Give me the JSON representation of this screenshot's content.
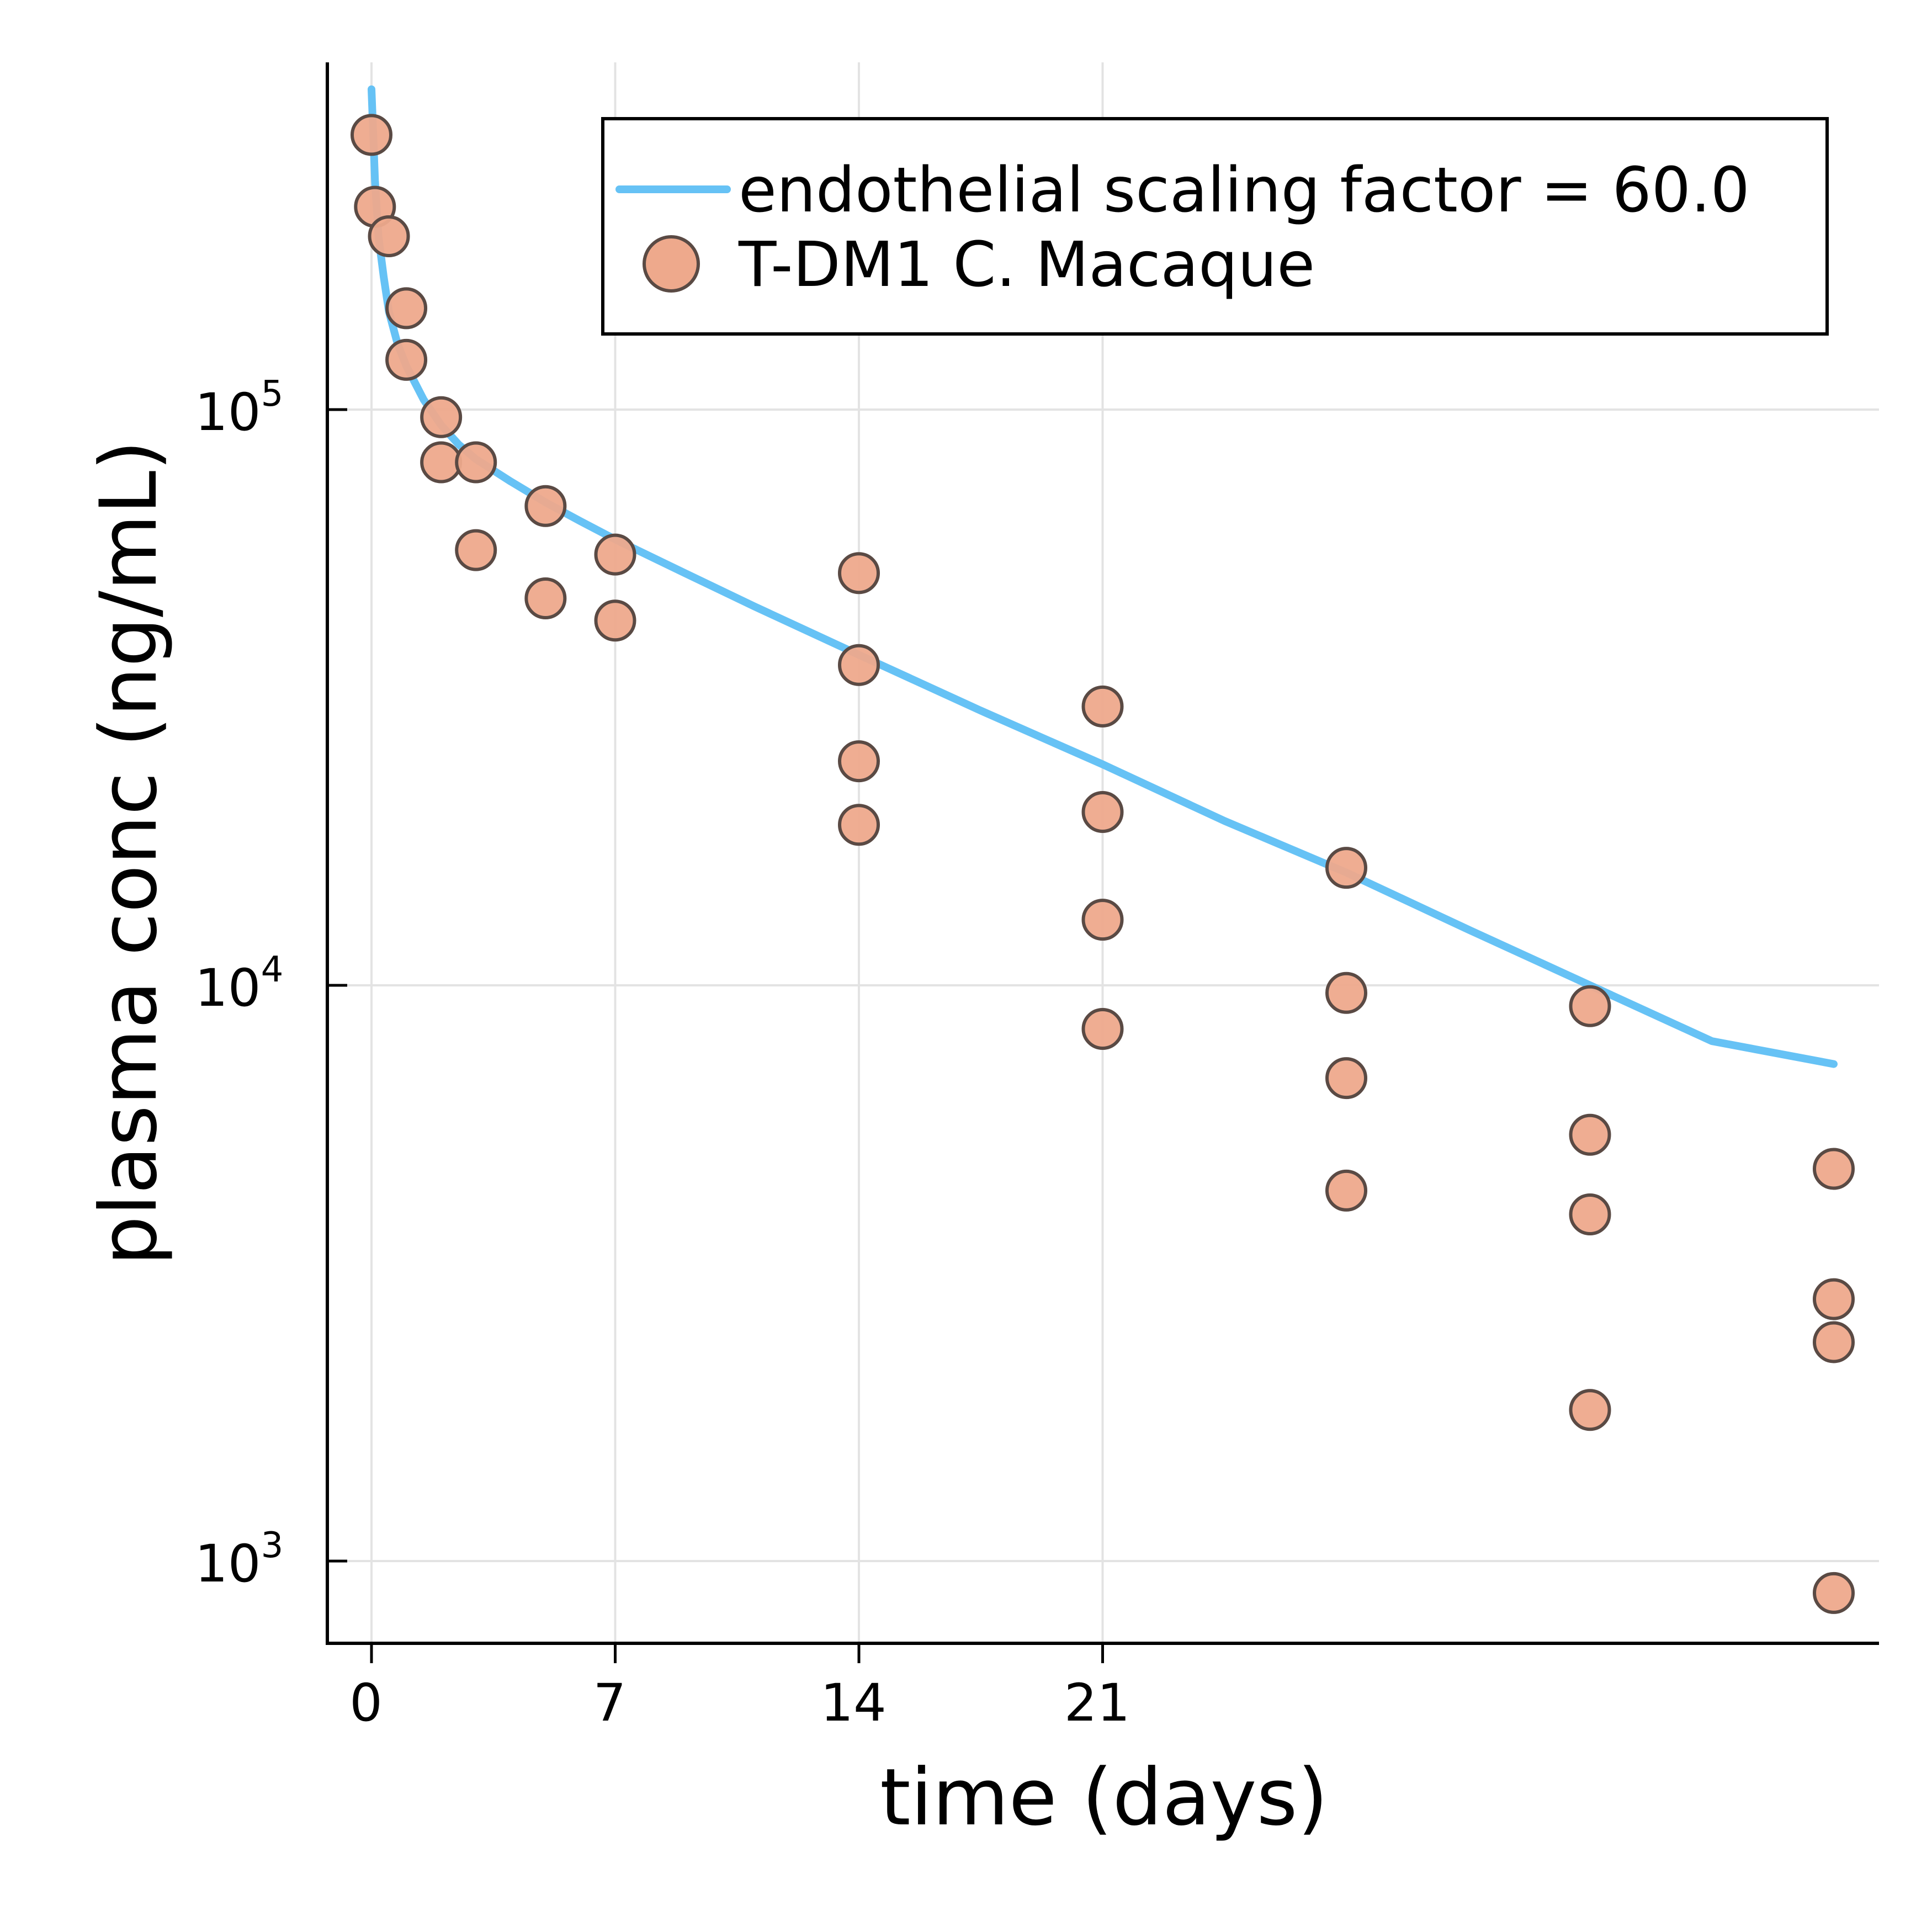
{
  "chart_data": {
    "type": "scatter",
    "title": "",
    "xlabel": "time (days)",
    "ylabel": "plasma conc (ng/mL)",
    "x_ticks": [
      0,
      7,
      14,
      21
    ],
    "y_ticks": [
      {
        "value": 1000,
        "base": "10",
        "exponent": "3"
      },
      {
        "value": 10000,
        "base": "10",
        "exponent": "4"
      },
      {
        "value": 100000,
        "base": "10",
        "exponent": "5"
      }
    ],
    "xlim": [
      -1.3,
      43.3
    ],
    "ylim": [
      720,
      750000
    ],
    "yscale": "log",
    "grid": true,
    "legend_position": "top-right",
    "colors": {
      "line": "#66c2f5",
      "marker_fill": "#eea98c",
      "marker_edge": "#5a4a44",
      "grid": "#e3e3e3",
      "axis": "#000000"
    },
    "series": [
      {
        "name": "endothelial scaling factor = 60.0",
        "type": "line",
        "x": [
          0,
          0.05,
          0.1,
          0.2,
          0.35,
          0.5,
          0.75,
          1,
          1.5,
          2,
          2.5,
          3,
          4,
          5,
          6,
          7,
          9,
          11,
          14,
          17.5,
          21,
          24.5,
          28,
          31.5,
          35,
          38.5,
          42
        ],
        "y": [
          360000,
          300000,
          250000,
          200000,
          170000,
          148000,
          130000,
          119000,
          104000,
          94000,
          87000,
          82000,
          75000,
          69000,
          64000,
          59500,
          52000,
          45500,
          37500,
          30000,
          24200,
          19300,
          15700,
          12500,
          10000,
          8000,
          7300
        ]
      },
      {
        "name": "T-DM1 C. Macaque",
        "type": "scatter",
        "x": [
          0,
          0.1,
          0.5,
          1,
          1,
          2,
          2,
          3,
          3,
          5,
          5,
          7,
          7,
          14,
          14,
          14,
          14,
          21,
          21,
          21,
          21,
          28,
          28,
          28,
          28,
          35,
          35,
          35,
          35,
          42,
          42,
          42,
          42
        ],
        "y": [
          300000,
          225000,
          200000,
          150000,
          122000,
          97000,
          81000,
          81000,
          57000,
          68000,
          47000,
          56000,
          43000,
          52000,
          36000,
          24500,
          19000,
          30500,
          20000,
          13000,
          8400,
          16000,
          9700,
          6900,
          4400,
          9200,
          5500,
          4000,
          1830,
          4800,
          2850,
          2400,
          880
        ]
      }
    ]
  }
}
